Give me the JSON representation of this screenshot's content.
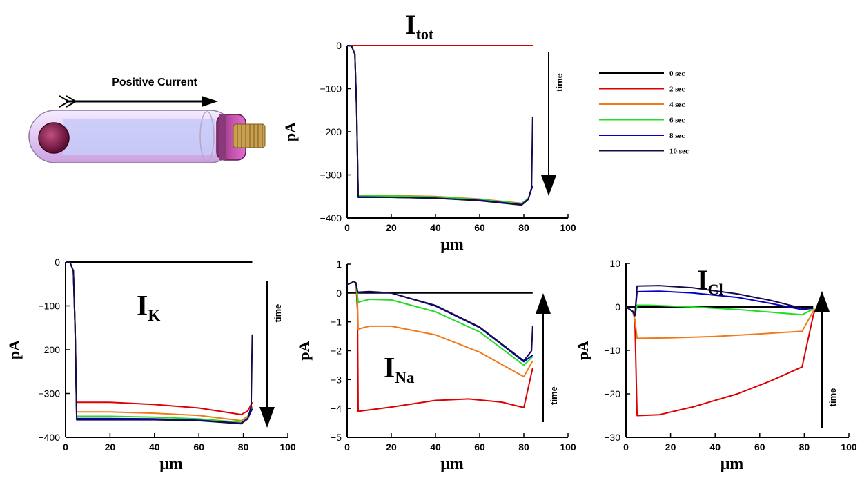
{
  "diagram": {
    "label": "Positive Current"
  },
  "legend": [
    {
      "label": "0 sec",
      "color": "#000000"
    },
    {
      "label": "2 sec",
      "color": "#dd0000"
    },
    {
      "label": "4 sec",
      "color": "#f07a1a"
    },
    {
      "label": "6 sec",
      "color": "#22dd22"
    },
    {
      "label": "8 sec",
      "color": "#0000cc"
    },
    {
      "label": "10 sec",
      "color": "#1a0a4a"
    }
  ],
  "time_label": "time",
  "chart_data": [
    {
      "id": "itot",
      "type": "line",
      "title_main": "I",
      "title_sub": "tot",
      "xlabel": "μm",
      "ylabel": "pA",
      "xlim": [
        0,
        100
      ],
      "ylim": [
        -400,
        0
      ],
      "xticks": [
        0,
        20,
        40,
        60,
        80,
        100
      ],
      "yticks": [
        0,
        -100,
        -200,
        -300,
        -400
      ],
      "arrow": "down",
      "series": [
        {
          "color": "#000000",
          "points": [
            [
              0,
              0
            ],
            [
              84,
              0
            ]
          ]
        },
        {
          "color": "#dd0000",
          "points": [
            [
              0,
              0
            ],
            [
              84,
              0
            ]
          ]
        },
        {
          "color": "#f07a1a",
          "points": [
            [
              0,
              0
            ],
            [
              2,
              -1
            ],
            [
              3.5,
              -20
            ],
            [
              4.3,
              -150
            ],
            [
              5,
              -348
            ],
            [
              20,
              -348
            ],
            [
              40,
              -350
            ],
            [
              60,
              -356
            ],
            [
              79,
              -366
            ],
            [
              82,
              -355
            ],
            [
              84,
              -325
            ]
          ]
        },
        {
          "color": "#22dd22",
          "points": [
            [
              0,
              0
            ],
            [
              2,
              -1
            ],
            [
              3.5,
              -20
            ],
            [
              4.3,
              -150
            ],
            [
              5,
              -349
            ],
            [
              20,
              -349
            ],
            [
              40,
              -351
            ],
            [
              60,
              -357
            ],
            [
              79,
              -367
            ],
            [
              82,
              -355
            ],
            [
              84,
              -325
            ]
          ]
        },
        {
          "color": "#0000cc",
          "points": [
            [
              0,
              0
            ],
            [
              2,
              -1
            ],
            [
              3.5,
              -20
            ],
            [
              4.3,
              -150
            ],
            [
              5,
              -351
            ],
            [
              20,
              -352
            ],
            [
              40,
              -354
            ],
            [
              60,
              -359
            ],
            [
              79,
              -369
            ],
            [
              82,
              -356
            ],
            [
              84,
              -325
            ]
          ]
        },
        {
          "color": "#1a0a4a",
          "points": [
            [
              0,
              0
            ],
            [
              2,
              -1
            ],
            [
              3.5,
              -20
            ],
            [
              4.3,
              -150
            ],
            [
              5,
              -352
            ],
            [
              20,
              -352
            ],
            [
              40,
              -354
            ],
            [
              60,
              -360
            ],
            [
              79,
              -370
            ],
            [
              82,
              -357
            ],
            [
              83.5,
              -330
            ],
            [
              84,
              -165
            ]
          ]
        }
      ]
    },
    {
      "id": "ik",
      "type": "line",
      "title_main": "I",
      "title_sub": "K",
      "xlabel": "μm",
      "ylabel": "pA",
      "xlim": [
        0,
        100
      ],
      "ylim": [
        -400,
        0
      ],
      "xticks": [
        0,
        20,
        40,
        60,
        80,
        100
      ],
      "yticks": [
        0,
        -100,
        -200,
        -300,
        -400
      ],
      "arrow": "down",
      "series": [
        {
          "color": "#000000",
          "points": [
            [
              0,
              0
            ],
            [
              84,
              0
            ]
          ]
        },
        {
          "color": "#dd0000",
          "points": [
            [
              0,
              0
            ],
            [
              2,
              -1
            ],
            [
              3.5,
              -20
            ],
            [
              4.3,
              -150
            ],
            [
              5,
              -320
            ],
            [
              20,
              -320
            ],
            [
              40,
              -325
            ],
            [
              60,
              -333
            ],
            [
              79,
              -348
            ],
            [
              82,
              -340
            ],
            [
              84,
              -320
            ]
          ]
        },
        {
          "color": "#f07a1a",
          "points": [
            [
              0,
              0
            ],
            [
              2,
              -1
            ],
            [
              3.5,
              -20
            ],
            [
              4.3,
              -150
            ],
            [
              5,
              -342
            ],
            [
              20,
              -342
            ],
            [
              40,
              -345
            ],
            [
              60,
              -350
            ],
            [
              79,
              -362
            ],
            [
              82,
              -352
            ],
            [
              84,
              -330
            ]
          ]
        },
        {
          "color": "#22dd22",
          "points": [
            [
              0,
              0
            ],
            [
              2,
              -1
            ],
            [
              3.5,
              -20
            ],
            [
              4.3,
              -150
            ],
            [
              5,
              -352
            ],
            [
              20,
              -352
            ],
            [
              40,
              -354
            ],
            [
              60,
              -358
            ],
            [
              79,
              -366
            ],
            [
              82,
              -356
            ],
            [
              84,
              -332
            ]
          ]
        },
        {
          "color": "#0000cc",
          "points": [
            [
              0,
              0
            ],
            [
              2,
              -1
            ],
            [
              3.5,
              -20
            ],
            [
              4.3,
              -150
            ],
            [
              5,
              -357
            ],
            [
              20,
              -357
            ],
            [
              40,
              -358
            ],
            [
              60,
              -361
            ],
            [
              79,
              -368
            ],
            [
              82,
              -357
            ],
            [
              84,
              -335
            ]
          ]
        },
        {
          "color": "#1a0a4a",
          "points": [
            [
              0,
              0
            ],
            [
              2,
              -1
            ],
            [
              3.5,
              -20
            ],
            [
              4.3,
              -150
            ],
            [
              5,
              -360
            ],
            [
              20,
              -360
            ],
            [
              40,
              -360
            ],
            [
              60,
              -362
            ],
            [
              79,
              -369
            ],
            [
              82,
              -358
            ],
            [
              83.5,
              -330
            ],
            [
              84,
              -165
            ]
          ]
        }
      ]
    },
    {
      "id": "ina",
      "type": "line",
      "title_main": "I",
      "title_sub": "Na",
      "xlabel": "μm",
      "ylabel": "pA",
      "xlim": [
        0,
        100
      ],
      "ylim": [
        -5,
        1
      ],
      "xticks": [
        0,
        20,
        40,
        60,
        80,
        100
      ],
      "yticks": [
        1,
        0,
        -1,
        -2,
        -3,
        -4,
        -5
      ],
      "arrow": "up",
      "series": [
        {
          "color": "#000000",
          "points": [
            [
              0,
              0
            ],
            [
              84,
              0
            ]
          ]
        },
        {
          "color": "#dd0000",
          "points": [
            [
              0,
              0.3
            ],
            [
              2,
              0.35
            ],
            [
              3,
              0.4
            ],
            [
              4,
              0.35
            ],
            [
              4.7,
              -0.6
            ],
            [
              5,
              -4.1
            ],
            [
              20,
              -3.95
            ],
            [
              40,
              -3.72
            ],
            [
              55,
              -3.67
            ],
            [
              70,
              -3.78
            ],
            [
              80,
              -3.97
            ],
            [
              84,
              -2.6
            ]
          ]
        },
        {
          "color": "#f07a1a",
          "points": [
            [
              0,
              0.3
            ],
            [
              2,
              0.35
            ],
            [
              3,
              0.4
            ],
            [
              4,
              0.35
            ],
            [
              4.7,
              -0.3
            ],
            [
              5,
              -1.25
            ],
            [
              10,
              -1.15
            ],
            [
              20,
              -1.15
            ],
            [
              40,
              -1.45
            ],
            [
              60,
              -2.05
            ],
            [
              80,
              -2.9
            ],
            [
              84,
              -2.35
            ]
          ]
        },
        {
          "color": "#22dd22",
          "points": [
            [
              0,
              0.3
            ],
            [
              2,
              0.35
            ],
            [
              3,
              0.4
            ],
            [
              4,
              0.35
            ],
            [
              4.7,
              -0.1
            ],
            [
              5,
              -0.32
            ],
            [
              10,
              -0.22
            ],
            [
              20,
              -0.24
            ],
            [
              40,
              -0.65
            ],
            [
              60,
              -1.35
            ],
            [
              80,
              -2.5
            ],
            [
              84,
              -2.2
            ]
          ]
        },
        {
          "color": "#0000cc",
          "points": [
            [
              0,
              0.3
            ],
            [
              2,
              0.35
            ],
            [
              3,
              0.4
            ],
            [
              4,
              0.35
            ],
            [
              4.7,
              0.05
            ],
            [
              5,
              0.02
            ],
            [
              10,
              0.04
            ],
            [
              20,
              0.0
            ],
            [
              40,
              -0.45
            ],
            [
              60,
              -1.2
            ],
            [
              80,
              -2.38
            ],
            [
              84,
              -2.15
            ]
          ]
        },
        {
          "color": "#1a0a4a",
          "points": [
            [
              0,
              0.3
            ],
            [
              2,
              0.35
            ],
            [
              3,
              0.4
            ],
            [
              4,
              0.35
            ],
            [
              4.7,
              0.05
            ],
            [
              5,
              0.03
            ],
            [
              10,
              0.05
            ],
            [
              20,
              0.0
            ],
            [
              40,
              -0.43
            ],
            [
              60,
              -1.18
            ],
            [
              80,
              -2.35
            ],
            [
              83.5,
              -2.0
            ],
            [
              84,
              -1.15
            ]
          ]
        }
      ]
    },
    {
      "id": "icl",
      "type": "line",
      "title_main": "I",
      "title_sub": "Cl",
      "xlabel": "μm",
      "ylabel": "pA",
      "xlim": [
        0,
        100
      ],
      "ylim": [
        -30,
        10
      ],
      "xticks": [
        0,
        20,
        40,
        60,
        80,
        100
      ],
      "yticks": [
        10,
        0,
        -10,
        -20,
        -30
      ],
      "arrow": "up",
      "series": [
        {
          "color": "#000000",
          "points": [
            [
              0,
              0
            ],
            [
              84,
              0
            ]
          ]
        },
        {
          "color": "#dd0000",
          "points": [
            [
              0,
              0
            ],
            [
              3,
              -1
            ],
            [
              4,
              -3
            ],
            [
              5,
              -25
            ],
            [
              15,
              -24.8
            ],
            [
              30,
              -23
            ],
            [
              50,
              -20
            ],
            [
              65,
              -17
            ],
            [
              79,
              -13.8
            ],
            [
              84,
              -2
            ],
            [
              85,
              -0.5
            ]
          ]
        },
        {
          "color": "#f07a1a",
          "points": [
            [
              0,
              0
            ],
            [
              3,
              -1
            ],
            [
              4,
              -3
            ],
            [
              5,
              -7.2
            ],
            [
              20,
              -7.1
            ],
            [
              40,
              -6.8
            ],
            [
              60,
              -6.2
            ],
            [
              79,
              -5.6
            ],
            [
              84,
              -1
            ],
            [
              85,
              -0.5
            ]
          ]
        },
        {
          "color": "#22dd22",
          "points": [
            [
              0,
              0
            ],
            [
              3,
              -1
            ],
            [
              4,
              -2
            ],
            [
              5,
              0.4
            ],
            [
              10,
              0.4
            ],
            [
              30,
              0.0
            ],
            [
              50,
              -0.6
            ],
            [
              65,
              -1.2
            ],
            [
              79,
              -1.8
            ],
            [
              84,
              -0.5
            ]
          ]
        },
        {
          "color": "#0000cc",
          "points": [
            [
              0,
              0
            ],
            [
              3,
              -1
            ],
            [
              4,
              -2
            ],
            [
              5,
              3.5
            ],
            [
              15,
              3.6
            ],
            [
              30,
              3.2
            ],
            [
              50,
              2.2
            ],
            [
              65,
              0.8
            ],
            [
              79,
              -0.6
            ],
            [
              84,
              -0.3
            ]
          ]
        },
        {
          "color": "#1a0a4a",
          "points": [
            [
              0,
              0
            ],
            [
              3,
              -1
            ],
            [
              4,
              -2
            ],
            [
              5,
              4.8
            ],
            [
              15,
              4.9
            ],
            [
              30,
              4.4
            ],
            [
              50,
              3.0
            ],
            [
              65,
              1.5
            ],
            [
              79,
              -0.3
            ],
            [
              84,
              -0.3
            ]
          ]
        }
      ]
    }
  ]
}
